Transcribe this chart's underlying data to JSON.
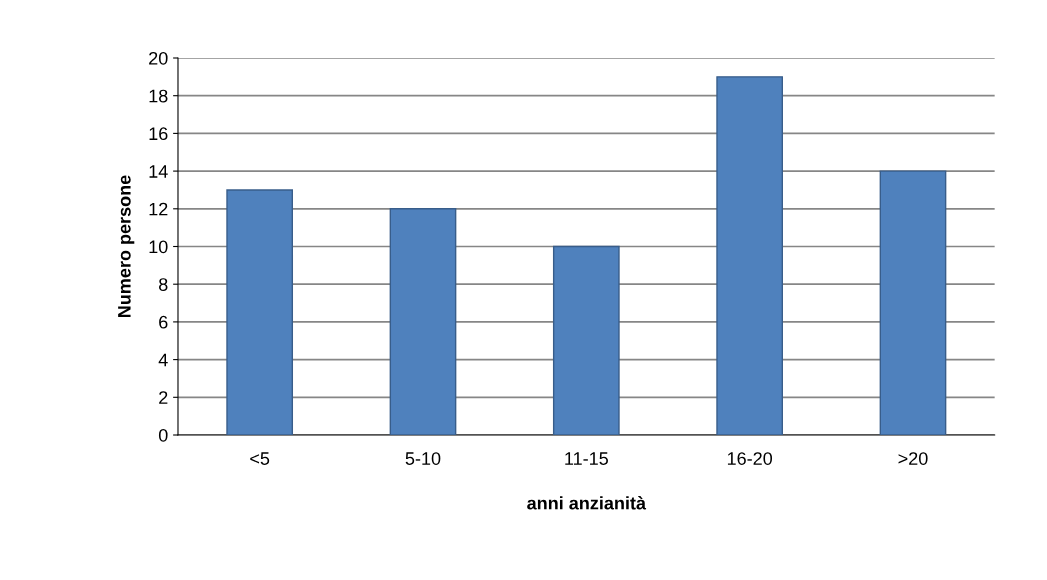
{
  "chart_data": {
    "type": "bar",
    "xlabel": "anni anzianità",
    "ylabel": "Numero persone",
    "categories": [
      "<5",
      "5-10",
      "11-15",
      "16-20",
      ">20"
    ],
    "values": [
      13,
      12,
      10,
      19,
      14
    ],
    "color": "#4f81bd",
    "ylim": [
      0,
      20
    ],
    "yticks": [
      0,
      2,
      4,
      6,
      8,
      10,
      12,
      14,
      16,
      18,
      20
    ],
    "grid": "y"
  }
}
